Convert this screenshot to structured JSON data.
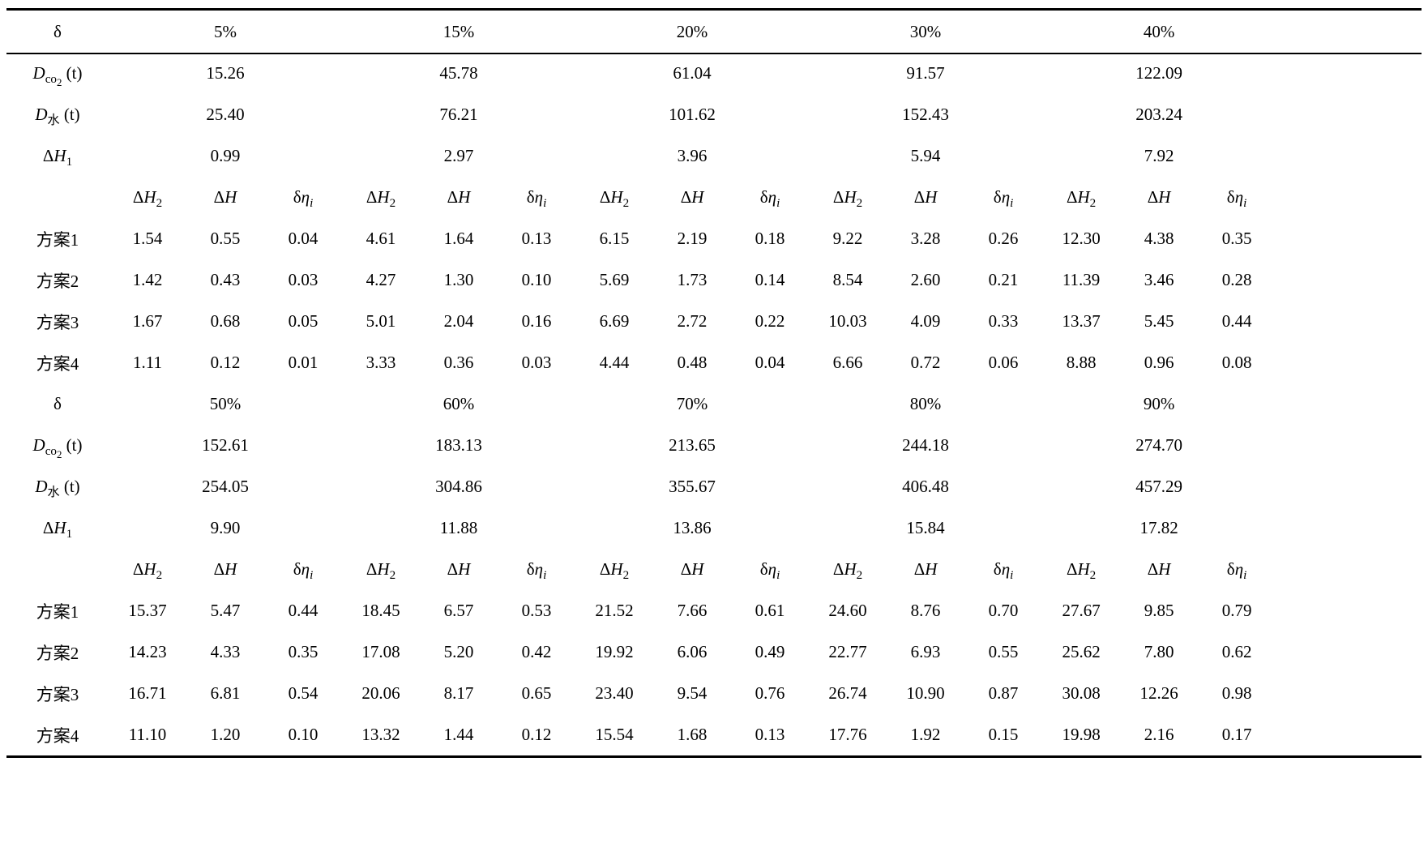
{
  "page": {
    "background": "#ffffff",
    "text_color": "#000000",
    "rule_color": "#000000"
  },
  "table": {
    "group_count": 5,
    "columns_per_group": 3,
    "subheader_labels_html": [
      "Δ<i>H</i><sub>2</sub>",
      "Δ<i>H</i>",
      "δ<i>η<sub>i</sub></i>"
    ],
    "row_labels_html": {
      "delta": "δ",
      "d_co2": "<i>D</i><sub>co<sub>2</sub></sub> (t)",
      "d_water": "<i>D</i><sub>水</sub> (t)",
      "delta_h1": "Δ<i>H</i><sub>1</sub>"
    },
    "sections": [
      {
        "delta_values": [
          "5%",
          "15%",
          "20%",
          "30%",
          "40%"
        ],
        "d_co2_values": [
          "15.26",
          "45.78",
          "61.04",
          "91.57",
          "122.09"
        ],
        "d_water_values": [
          "25.40",
          "76.21",
          "101.62",
          "152.43",
          "203.24"
        ],
        "delta_h1_values": [
          "0.99",
          "2.97",
          "3.96",
          "5.94",
          "7.92"
        ],
        "schemes": [
          {
            "label": "方案1",
            "values": [
              "1.54",
              "0.55",
              "0.04",
              "4.61",
              "1.64",
              "0.13",
              "6.15",
              "2.19",
              "0.18",
              "9.22",
              "3.28",
              "0.26",
              "12.30",
              "4.38",
              "0.35"
            ]
          },
          {
            "label": "方案2",
            "values": [
              "1.42",
              "0.43",
              "0.03",
              "4.27",
              "1.30",
              "0.10",
              "5.69",
              "1.73",
              "0.14",
              "8.54",
              "2.60",
              "0.21",
              "11.39",
              "3.46",
              "0.28"
            ]
          },
          {
            "label": "方案3",
            "values": [
              "1.67",
              "0.68",
              "0.05",
              "5.01",
              "2.04",
              "0.16",
              "6.69",
              "2.72",
              "0.22",
              "10.03",
              "4.09",
              "0.33",
              "13.37",
              "5.45",
              "0.44"
            ]
          },
          {
            "label": "方案4",
            "values": [
              "1.11",
              "0.12",
              "0.01",
              "3.33",
              "0.36",
              "0.03",
              "4.44",
              "0.48",
              "0.04",
              "6.66",
              "0.72",
              "0.06",
              "8.88",
              "0.96",
              "0.08"
            ]
          }
        ]
      },
      {
        "delta_values": [
          "50%",
          "60%",
          "70%",
          "80%",
          "90%"
        ],
        "d_co2_values": [
          "152.61",
          "183.13",
          "213.65",
          "244.18",
          "274.70"
        ],
        "d_water_values": [
          "254.05",
          "304.86",
          "355.67",
          "406.48",
          "457.29"
        ],
        "delta_h1_values": [
          "9.90",
          "11.88",
          "13.86",
          "15.84",
          "17.82"
        ],
        "schemes": [
          {
            "label": "方案1",
            "values": [
              "15.37",
              "5.47",
              "0.44",
              "18.45",
              "6.57",
              "0.53",
              "21.52",
              "7.66",
              "0.61",
              "24.60",
              "8.76",
              "0.70",
              "27.67",
              "9.85",
              "0.79"
            ]
          },
          {
            "label": "方案2",
            "values": [
              "14.23",
              "4.33",
              "0.35",
              "17.08",
              "5.20",
              "0.42",
              "19.92",
              "6.06",
              "0.49",
              "22.77",
              "6.93",
              "0.55",
              "25.62",
              "7.80",
              "0.62"
            ]
          },
          {
            "label": "方案3",
            "values": [
              "16.71",
              "6.81",
              "0.54",
              "20.06",
              "8.17",
              "0.65",
              "23.40",
              "9.54",
              "0.76",
              "26.74",
              "10.90",
              "0.87",
              "30.08",
              "12.26",
              "0.98"
            ]
          },
          {
            "label": "方案4",
            "values": [
              "11.10",
              "1.20",
              "0.10",
              "13.32",
              "1.44",
              "0.12",
              "15.54",
              "1.68",
              "0.13",
              "17.76",
              "1.92",
              "0.15",
              "19.98",
              "2.16",
              "0.17"
            ]
          }
        ]
      }
    ]
  }
}
